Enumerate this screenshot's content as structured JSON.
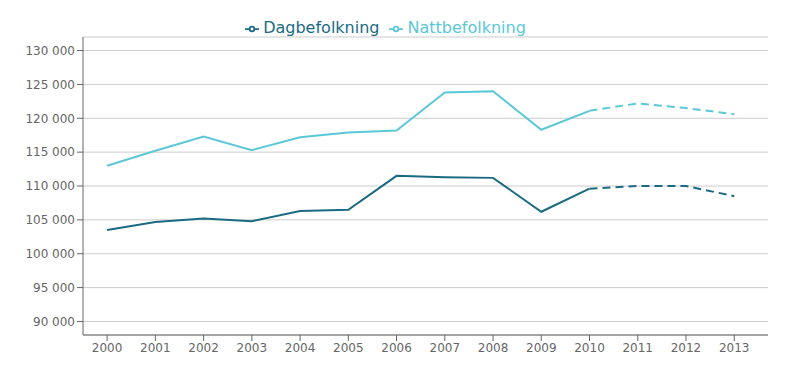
{
  "chart_data": {
    "type": "line",
    "x": [
      2000,
      2001,
      2002,
      2003,
      2004,
      2005,
      2006,
      2007,
      2008,
      2009,
      2010,
      2011,
      2012,
      2013
    ],
    "series": [
      {
        "name": "Dagbefolkning",
        "color": "#1a6b82",
        "line_style": "solid",
        "values": [
          103500,
          104700,
          105200,
          104800,
          106300,
          106500,
          111500,
          111300,
          111200,
          106200,
          109600,
          null,
          null,
          null
        ]
      },
      {
        "name": "Nattbefolkning",
        "color": "#5bc8d8",
        "line_style": "solid",
        "values": [
          113000,
          115200,
          117300,
          115300,
          117200,
          117900,
          118200,
          123800,
          124000,
          118300,
          121100,
          null,
          null,
          null
        ]
      },
      {
        "color": "#1a6b82",
        "line_style": "dashed",
        "values": [
          null,
          null,
          null,
          null,
          null,
          null,
          null,
          null,
          null,
          null,
          109600,
          110000,
          110000,
          108500
        ]
      },
      {
        "color": "#5bc8d8",
        "line_style": "dashed",
        "values": [
          null,
          null,
          null,
          null,
          null,
          null,
          null,
          null,
          null,
          null,
          121100,
          122200,
          121500,
          120600
        ]
      }
    ],
    "xlim": [
      1999.5,
      2013.7
    ],
    "xticks": [
      2000,
      2001,
      2002,
      2003,
      2004,
      2005,
      2006,
      2007,
      2008,
      2009,
      2010,
      2011,
      2012,
      2013
    ],
    "ylim": [
      88000,
      132000
    ],
    "yticks": [
      {
        "value": 90000,
        "label": "90 000"
      },
      {
        "value": 95000,
        "label": "95 000"
      },
      {
        "value": 100000,
        "label": "100 000"
      },
      {
        "value": 105000,
        "label": "105 000"
      },
      {
        "value": 110000,
        "label": "110 000"
      },
      {
        "value": 115000,
        "label": "115 000"
      },
      {
        "value": 120000,
        "label": "120 000"
      },
      {
        "value": 125000,
        "label": "125 000"
      },
      {
        "value": 130000,
        "label": "130 000"
      }
    ],
    "grid": true,
    "legend": "top"
  }
}
